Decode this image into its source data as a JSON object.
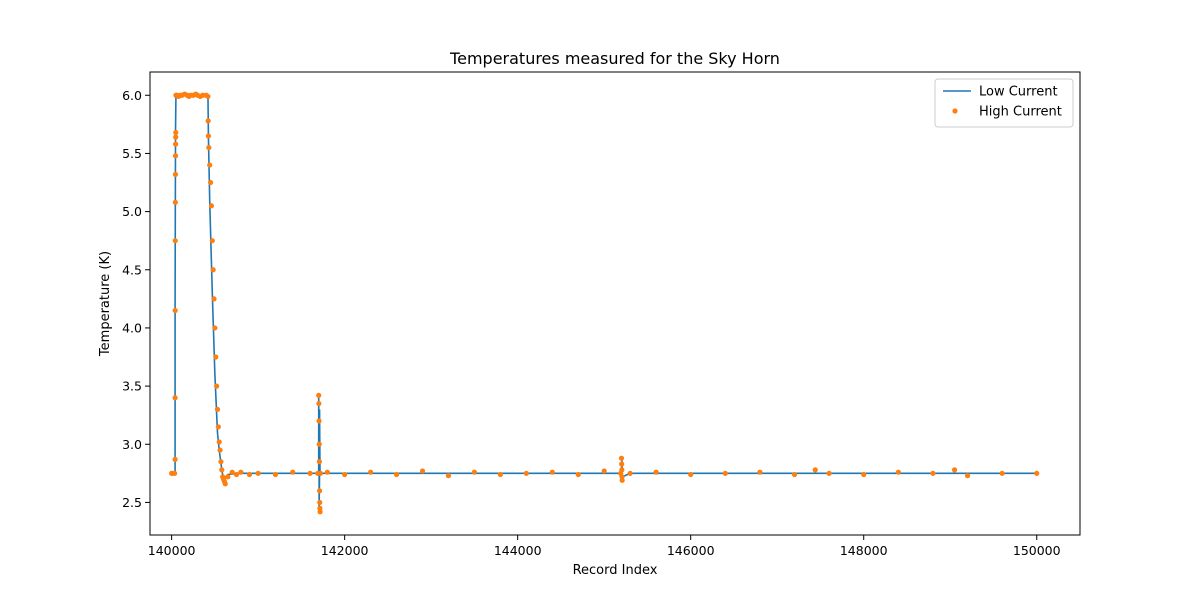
{
  "chart_data": {
    "type": "line",
    "title": "Temperatures measured for the Sky Horn",
    "xlabel": "Record Index",
    "ylabel": "Temperature (K)",
    "xlim": [
      139750,
      150500
    ],
    "ylim": [
      2.22,
      6.2
    ],
    "xticks": [
      140000,
      142000,
      144000,
      146000,
      148000,
      150000
    ],
    "xtick_labels": [
      "140000",
      "142000",
      "144000",
      "146000",
      "148000",
      "150000"
    ],
    "yticks": [
      2.5,
      3.0,
      3.5,
      4.0,
      4.5,
      5.0,
      5.5,
      6.0
    ],
    "ytick_labels": [
      "2.5",
      "3.0",
      "3.5",
      "4.0",
      "4.5",
      "5.0",
      "5.5",
      "6.0"
    ],
    "grid": false,
    "legend_position": "top-right",
    "series": [
      {
        "name": "Low Current",
        "kind": "line",
        "color": "#1f77b4",
        "x": [
          140000,
          140040,
          140040,
          140045,
          140050,
          140420,
          140425,
          140440,
          140470,
          140500,
          140530,
          140550,
          140580,
          140600,
          140650,
          140800,
          141000,
          141500,
          141690,
          141700,
          141700,
          141705,
          141705,
          141710,
          141710,
          141715,
          141730,
          142500,
          143500,
          144500,
          145100,
          145200,
          145205,
          145210,
          145300,
          146500,
          147500,
          148500,
          149500,
          150000
        ],
        "y": [
          2.75,
          2.75,
          4.2,
          5.7,
          6.0,
          6.0,
          5.65,
          5.1,
          4.3,
          3.6,
          3.1,
          2.95,
          2.78,
          2.7,
          2.74,
          2.75,
          2.75,
          2.75,
          2.75,
          2.75,
          3.4,
          2.75,
          2.45,
          2.75,
          3.3,
          2.75,
          2.75,
          2.75,
          2.75,
          2.75,
          2.75,
          2.75,
          2.86,
          2.72,
          2.75,
          2.75,
          2.75,
          2.75,
          2.75,
          2.75
        ]
      },
      {
        "name": "High Current",
        "kind": "scatter",
        "color": "#ff7f0e",
        "x": [
          140000,
          140010,
          140035,
          140040,
          140040,
          140041,
          140042,
          140043,
          140044,
          140045,
          140046,
          140047,
          140048,
          140050,
          140060,
          140080,
          140100,
          140120,
          140150,
          140180,
          140200,
          140220,
          140250,
          140280,
          140300,
          140330,
          140360,
          140400,
          140420,
          140422,
          140425,
          140430,
          140440,
          140450,
          140460,
          140470,
          140480,
          140490,
          140500,
          140510,
          140520,
          140530,
          140540,
          140550,
          140560,
          140570,
          140580,
          140590,
          140600,
          140610,
          140620,
          140650,
          140700,
          140750,
          140800,
          140900,
          141000,
          141200,
          141400,
          141600,
          141690,
          141700,
          141702,
          141704,
          141706,
          141708,
          141710,
          141712,
          141714,
          141716,
          141720,
          141800,
          142000,
          142300,
          142600,
          142900,
          143200,
          143500,
          143800,
          144100,
          144400,
          144700,
          145000,
          145190,
          145200,
          145202,
          145204,
          145206,
          145208,
          145300,
          145600,
          146000,
          146400,
          146800,
          147200,
          147440,
          147600,
          148000,
          148400,
          148800,
          149050,
          149200,
          149600,
          150000
        ],
        "y": [
          2.75,
          2.75,
          2.75,
          2.87,
          3.4,
          4.15,
          4.75,
          5.08,
          5.32,
          5.48,
          5.58,
          5.64,
          5.68,
          6.0,
          6.0,
          5.99,
          6.0,
          6.0,
          6.01,
          6.0,
          5.99,
          6.0,
          6.0,
          6.01,
          6.0,
          5.99,
          6.0,
          6.0,
          5.99,
          5.78,
          5.65,
          5.55,
          5.4,
          5.25,
          5.05,
          4.75,
          4.5,
          4.25,
          4.0,
          3.75,
          3.5,
          3.3,
          3.15,
          3.02,
          2.95,
          2.85,
          2.78,
          2.72,
          2.7,
          2.68,
          2.66,
          2.72,
          2.76,
          2.74,
          2.76,
          2.74,
          2.75,
          2.74,
          2.76,
          2.75,
          2.75,
          3.42,
          3.35,
          3.2,
          3.0,
          2.85,
          2.6,
          2.5,
          2.45,
          2.42,
          2.75,
          2.76,
          2.74,
          2.76,
          2.74,
          2.77,
          2.73,
          2.76,
          2.74,
          2.75,
          2.76,
          2.74,
          2.77,
          2.75,
          2.88,
          2.83,
          2.78,
          2.72,
          2.69,
          2.75,
          2.76,
          2.74,
          2.75,
          2.76,
          2.74,
          2.78,
          2.75,
          2.74,
          2.76,
          2.75,
          2.78,
          2.73,
          2.75,
          2.75
        ]
      }
    ]
  }
}
